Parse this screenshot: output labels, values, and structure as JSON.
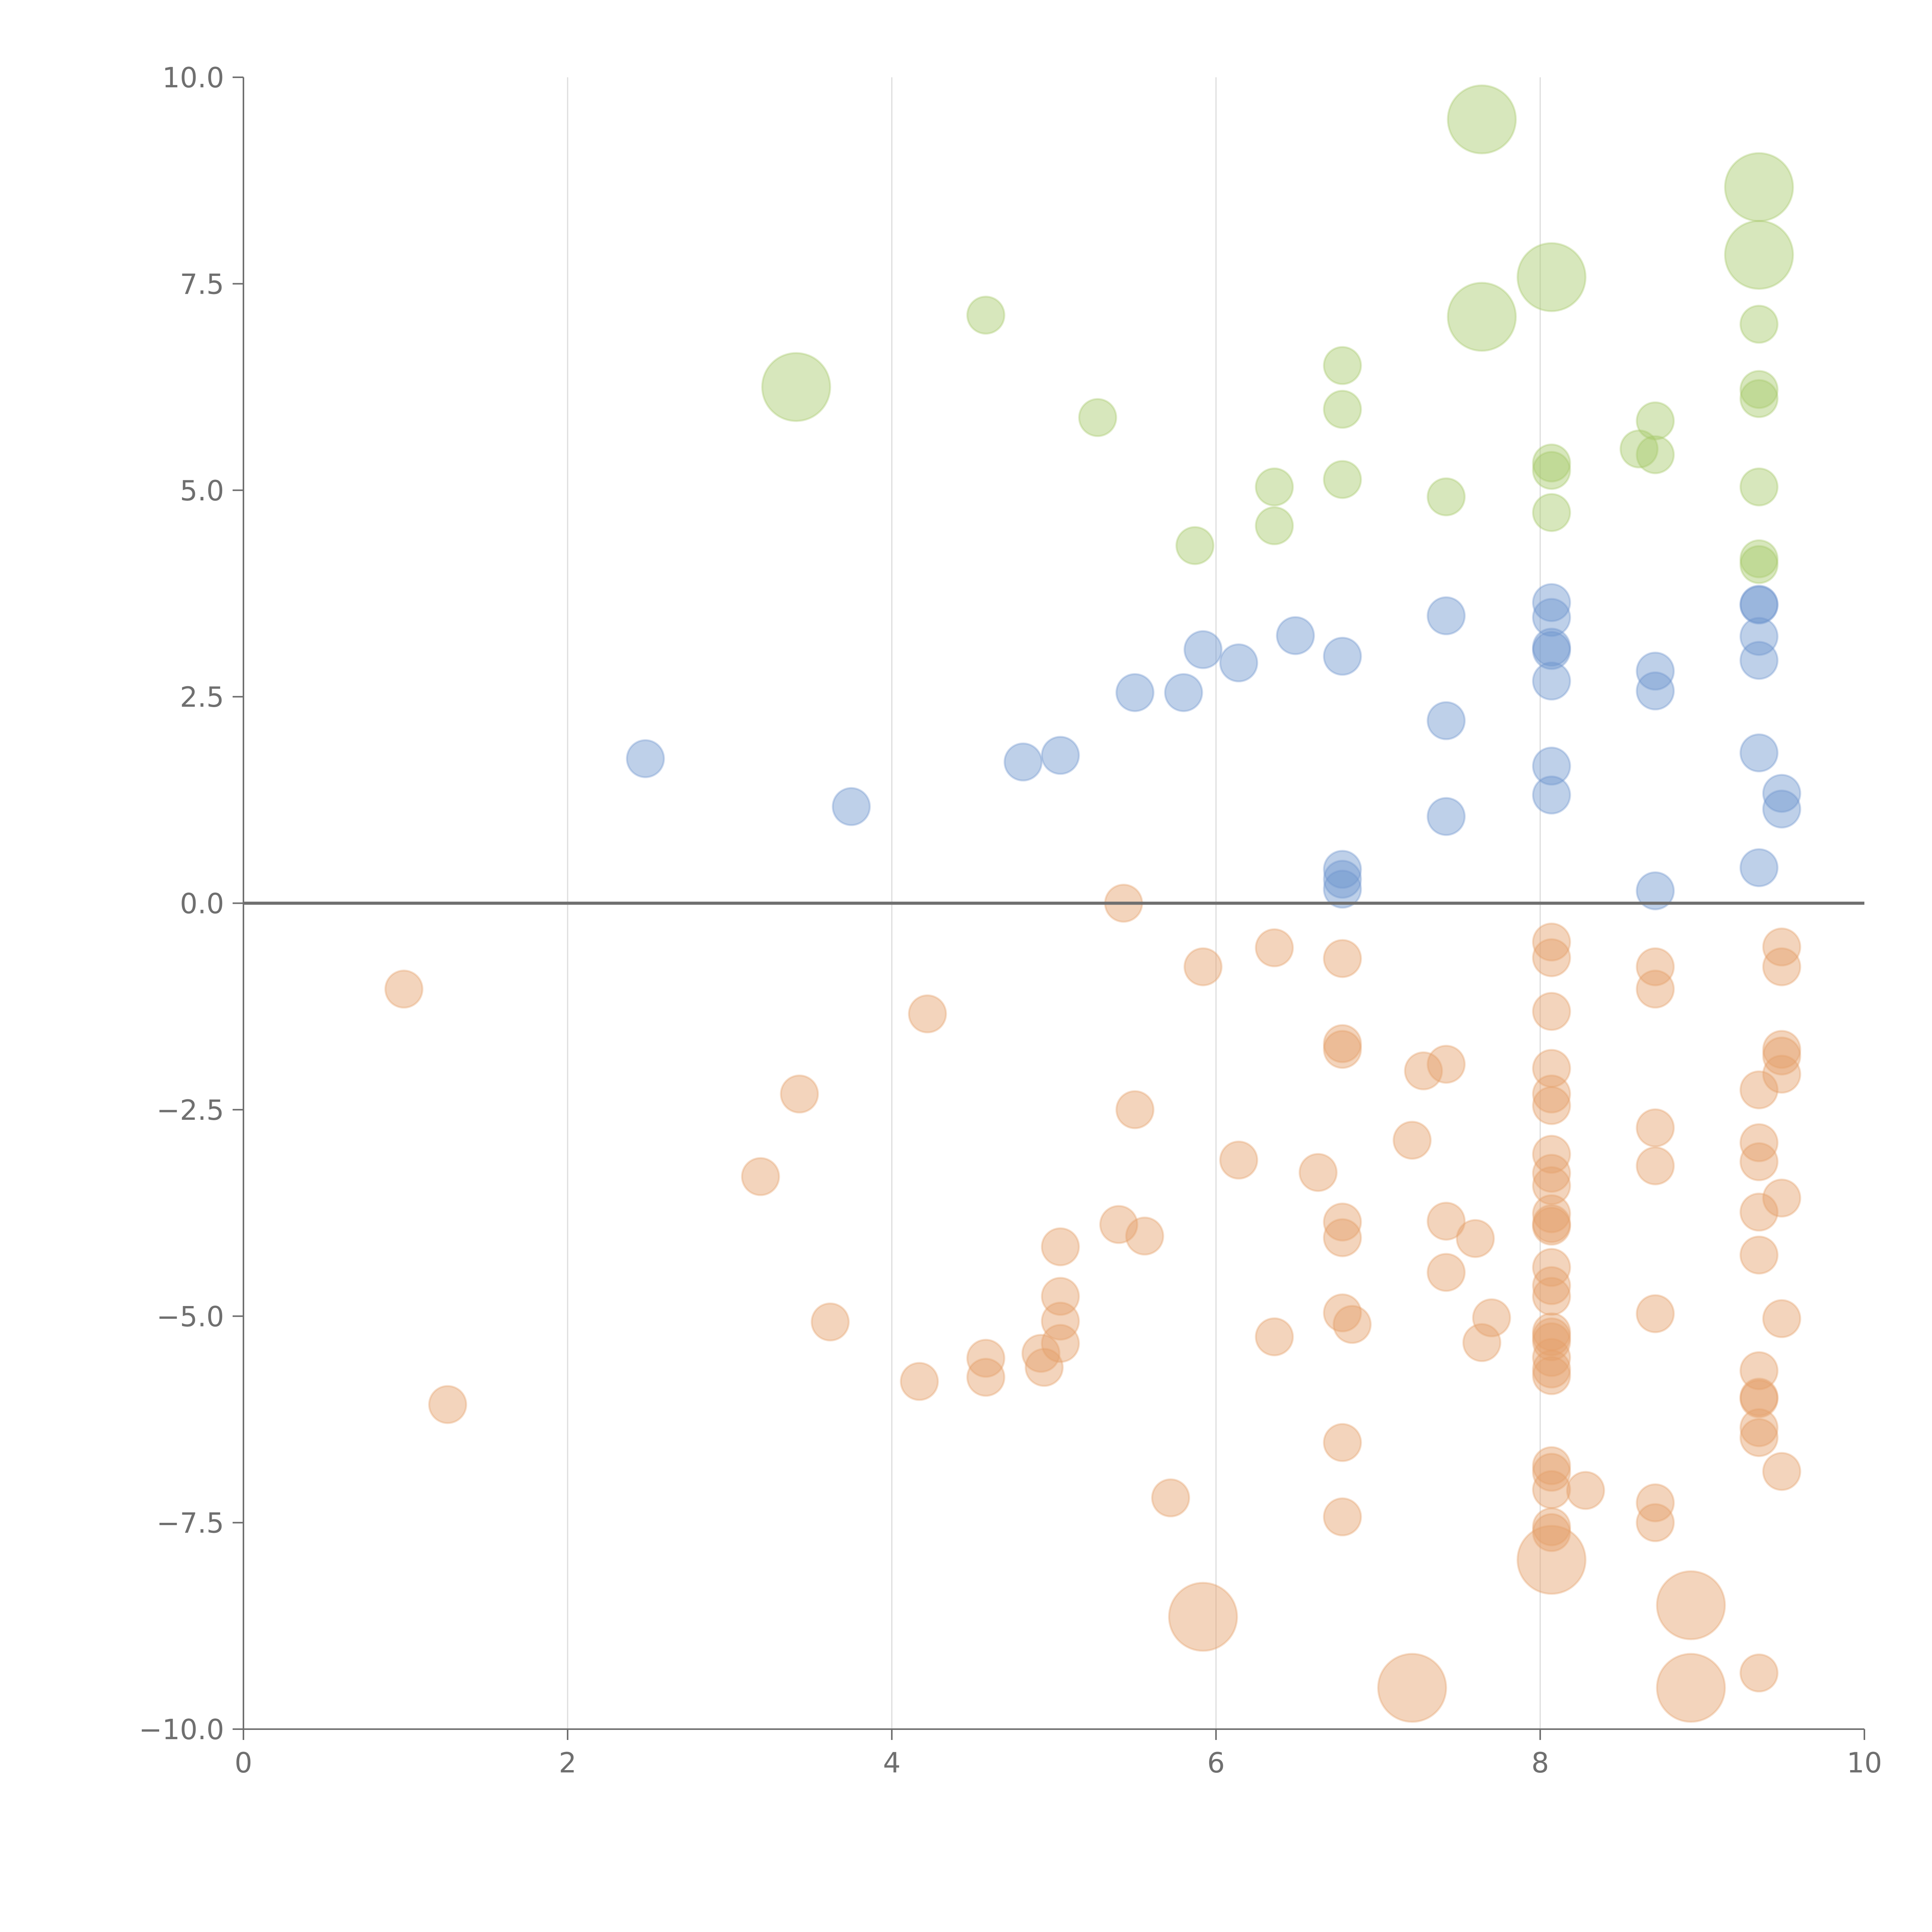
{
  "chart_data": {
    "type": "scatter",
    "title": "",
    "xlabel": "",
    "ylabel": "",
    "xlim": [
      0,
      10
    ],
    "ylim": [
      -10,
      10
    ],
    "grid": "vertical",
    "zero_line": true,
    "x_ticks": [
      "0",
      "2",
      "4",
      "6",
      "8",
      "10"
    ],
    "y_ticks": [
      "−10.0",
      "−7.5",
      "−5.0",
      "−2.5",
      "0.0",
      "2.5",
      "5.0",
      "7.5",
      "10.0"
    ],
    "series": [
      {
        "name": "green",
        "color": "#a6c96a",
        "points": [
          [
            4.58,
            7.12
          ],
          [
            5.27,
            5.88
          ],
          [
            5.87,
            4.33
          ],
          [
            6.36,
            5.04
          ],
          [
            6.36,
            4.57
          ],
          [
            6.78,
            6.51
          ],
          [
            6.78,
            5.98
          ],
          [
            6.78,
            5.13
          ],
          [
            7.42,
            4.92
          ],
          [
            8.07,
            5.33
          ],
          [
            8.07,
            5.24
          ],
          [
            8.07,
            4.73
          ],
          [
            8.61,
            5.5
          ],
          [
            8.71,
            5.84
          ],
          [
            8.71,
            5.43
          ],
          [
            9.35,
            7.01
          ],
          [
            9.35,
            6.22
          ],
          [
            9.35,
            6.11
          ],
          [
            9.35,
            5.04
          ],
          [
            9.35,
            4.17
          ],
          [
            9.35,
            4.1
          ]
        ],
        "large_points": [
          [
            3.41,
            6.25
          ],
          [
            7.64,
            9.49
          ],
          [
            7.64,
            7.1
          ],
          [
            8.07,
            7.58
          ],
          [
            9.35,
            8.67
          ],
          [
            9.35,
            7.85
          ]
        ]
      },
      {
        "name": "blue",
        "color": "#6f96cf",
        "points": [
          [
            2.48,
            1.75
          ],
          [
            3.75,
            1.17
          ],
          [
            4.81,
            1.71
          ],
          [
            5.04,
            1.79
          ],
          [
            5.5,
            2.55
          ],
          [
            5.8,
            2.55
          ],
          [
            5.92,
            3.07
          ],
          [
            6.14,
            2.91
          ],
          [
            6.49,
            3.24
          ],
          [
            6.78,
            2.99
          ],
          [
            6.78,
            0.41
          ],
          [
            6.78,
            0.29
          ],
          [
            6.78,
            0.17
          ],
          [
            7.42,
            3.48
          ],
          [
            7.42,
            2.21
          ],
          [
            7.42,
            1.05
          ],
          [
            8.07,
            3.64
          ],
          [
            8.07,
            3.46
          ],
          [
            8.07,
            3.1
          ],
          [
            8.07,
            3.06
          ],
          [
            8.07,
            2.69
          ],
          [
            8.07,
            1.66
          ],
          [
            8.07,
            1.31
          ],
          [
            8.71,
            2.81
          ],
          [
            8.71,
            2.57
          ],
          [
            8.71,
            0.15
          ],
          [
            9.35,
            3.62
          ],
          [
            9.35,
            3.61
          ],
          [
            9.35,
            3.23
          ],
          [
            9.35,
            2.94
          ],
          [
            9.35,
            1.82
          ],
          [
            9.35,
            0.43
          ],
          [
            9.49,
            1.33
          ],
          [
            9.49,
            1.14
          ]
        ],
        "large_points": []
      },
      {
        "name": "orange",
        "color": "#e5a06a",
        "points": [
          [
            0.99,
            -1.04
          ],
          [
            1.26,
            -6.07
          ],
          [
            3.19,
            -3.31
          ],
          [
            3.43,
            -2.31
          ],
          [
            3.62,
            -5.07
          ],
          [
            4.17,
            -5.79
          ],
          [
            4.22,
            -1.34
          ],
          [
            4.58,
            -5.51
          ],
          [
            4.58,
            -5.74
          ],
          [
            4.92,
            -5.45
          ],
          [
            4.94,
            -5.62
          ],
          [
            5.04,
            -4.16
          ],
          [
            5.04,
            -4.76
          ],
          [
            5.04,
            -5.06
          ],
          [
            5.04,
            -5.33
          ],
          [
            5.4,
            -3.89
          ],
          [
            5.43,
            0.0
          ],
          [
            5.5,
            -2.5
          ],
          [
            5.56,
            -4.03
          ],
          [
            5.72,
            -7.2
          ],
          [
            5.92,
            -0.77
          ],
          [
            6.14,
            -3.11
          ],
          [
            6.36,
            -0.54
          ],
          [
            6.36,
            -5.25
          ],
          [
            6.63,
            -3.26
          ],
          [
            6.78,
            -0.67
          ],
          [
            6.78,
            -1.7
          ],
          [
            6.78,
            -1.77
          ],
          [
            6.78,
            -3.86
          ],
          [
            6.78,
            -4.05
          ],
          [
            6.78,
            -4.96
          ],
          [
            6.78,
            -6.53
          ],
          [
            6.78,
            -7.43
          ],
          [
            6.84,
            -5.1
          ],
          [
            7.21,
            -2.87
          ],
          [
            7.28,
            -2.03
          ],
          [
            7.42,
            -1.95
          ],
          [
            7.42,
            -3.85
          ],
          [
            7.42,
            -4.47
          ],
          [
            7.6,
            -4.06
          ],
          [
            7.64,
            -5.32
          ],
          [
            7.7,
            -5.02
          ],
          [
            8.07,
            -0.47
          ],
          [
            8.07,
            -0.66
          ],
          [
            8.07,
            -1.31
          ],
          [
            8.07,
            -2.0
          ],
          [
            8.07,
            -2.31
          ],
          [
            8.07,
            -2.45
          ],
          [
            8.07,
            -3.04
          ],
          [
            8.07,
            -3.27
          ],
          [
            8.07,
            -3.42
          ],
          [
            8.07,
            -3.76
          ],
          [
            8.07,
            -3.88
          ],
          [
            8.07,
            -3.91
          ],
          [
            8.07,
            -4.41
          ],
          [
            8.07,
            -4.63
          ],
          [
            8.07,
            -4.76
          ],
          [
            8.07,
            -5.19
          ],
          [
            8.07,
            -5.25
          ],
          [
            8.07,
            -5.31
          ],
          [
            8.07,
            -5.5
          ],
          [
            8.07,
            -5.64
          ],
          [
            8.07,
            -5.72
          ],
          [
            8.07,
            -6.81
          ],
          [
            8.07,
            -6.89
          ],
          [
            8.07,
            -7.1
          ],
          [
            8.07,
            -7.55
          ],
          [
            8.07,
            -7.62
          ],
          [
            8.28,
            -7.11
          ],
          [
            8.71,
            -0.77
          ],
          [
            8.71,
            -1.04
          ],
          [
            8.71,
            -2.72
          ],
          [
            8.71,
            -3.18
          ],
          [
            8.71,
            -4.97
          ],
          [
            8.71,
            -7.26
          ],
          [
            8.71,
            -7.5
          ],
          [
            9.35,
            -2.26
          ],
          [
            9.35,
            -2.9
          ],
          [
            9.35,
            -3.13
          ],
          [
            9.35,
            -3.74
          ],
          [
            9.35,
            -4.26
          ],
          [
            9.35,
            -5.66
          ],
          [
            9.35,
            -5.98
          ],
          [
            9.35,
            -6.0
          ],
          [
            9.35,
            -6.35
          ],
          [
            9.35,
            -6.47
          ],
          [
            9.35,
            -9.32
          ],
          [
            9.49,
            -0.53
          ],
          [
            9.49,
            -0.77
          ],
          [
            9.49,
            -1.77
          ],
          [
            9.49,
            -1.85
          ],
          [
            9.49,
            -2.07
          ],
          [
            9.49,
            -3.57
          ],
          [
            9.49,
            -5.03
          ],
          [
            9.49,
            -6.88
          ]
        ],
        "large_points": [
          [
            5.92,
            -8.64
          ],
          [
            7.21,
            -9.5
          ],
          [
            8.07,
            -7.95
          ],
          [
            8.93,
            -8.5
          ],
          [
            8.93,
            -9.5
          ]
        ]
      }
    ]
  }
}
